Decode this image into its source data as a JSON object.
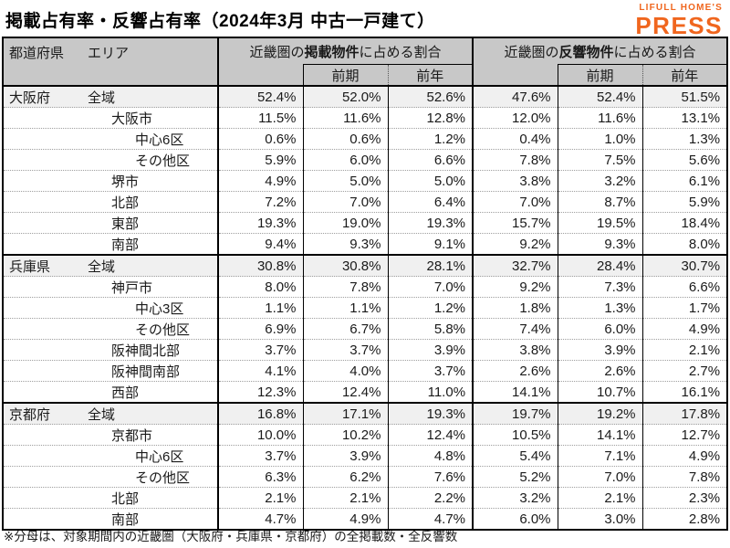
{
  "title": "掲載占有率・反響占有率（2024年3月 中古一戸建て）",
  "logo": {
    "line1": "LIFULL HOME'S",
    "line2": "PRESS",
    "color": "#F0661E"
  },
  "colors": {
    "accent": "#F0661E",
    "header_bg": "#C8C8C8",
    "band_bg": "#F0F0F0",
    "border": "#000000"
  },
  "footnote": "※分母は、対象期間内の近畿圏（大阪府・兵庫県・京都府）の全掲載数・全反響数",
  "chart_data": {
    "type": "table",
    "title": "掲載占有率・反響占有率（2024年3月 中古一戸建て）",
    "corner": {
      "col1": "都道府県",
      "col2": "エリア"
    },
    "groups": [
      {
        "prefix": "近畿圏の",
        "bold": "掲載物件",
        "suffix": "に占める割合"
      },
      {
        "prefix": "近畿圏の",
        "bold": "反響物件",
        "suffix": "に占める割合"
      }
    ],
    "subheaders": {
      "current": "",
      "prev_period": "前期",
      "prev_year": "前年"
    },
    "columns_per_group": [
      "",
      "前期",
      "前年"
    ],
    "sections": [
      {
        "prefecture": "大阪府",
        "rows": [
          {
            "area": "全域",
            "indent": 0,
            "values": [
              "52.4%",
              "52.0%",
              "52.6%",
              "47.6%",
              "52.4%",
              "51.5%"
            ]
          },
          {
            "area": "大阪市",
            "indent": 1,
            "values": [
              "11.5%",
              "11.6%",
              "12.8%",
              "12.0%",
              "11.6%",
              "13.1%"
            ]
          },
          {
            "area": "中心6区",
            "indent": 2,
            "values": [
              "0.6%",
              "0.6%",
              "1.2%",
              "0.4%",
              "1.0%",
              "1.3%"
            ]
          },
          {
            "area": "その他区",
            "indent": 2,
            "values": [
              "5.9%",
              "6.0%",
              "6.6%",
              "7.8%",
              "7.5%",
              "5.6%"
            ]
          },
          {
            "area": "堺市",
            "indent": 1,
            "values": [
              "4.9%",
              "5.0%",
              "5.0%",
              "3.8%",
              "3.2%",
              "6.1%"
            ]
          },
          {
            "area": "北部",
            "indent": 1,
            "values": [
              "7.2%",
              "7.0%",
              "6.4%",
              "7.0%",
              "8.7%",
              "5.9%"
            ]
          },
          {
            "area": "東部",
            "indent": 1,
            "values": [
              "19.3%",
              "19.0%",
              "19.3%",
              "15.7%",
              "19.5%",
              "18.4%"
            ]
          },
          {
            "area": "南部",
            "indent": 1,
            "values": [
              "9.4%",
              "9.3%",
              "9.1%",
              "9.2%",
              "9.3%",
              "8.0%"
            ]
          }
        ]
      },
      {
        "prefecture": "兵庫県",
        "rows": [
          {
            "area": "全域",
            "indent": 0,
            "values": [
              "30.8%",
              "30.8%",
              "28.1%",
              "32.7%",
              "28.4%",
              "30.7%"
            ]
          },
          {
            "area": "神戸市",
            "indent": 1,
            "values": [
              "8.0%",
              "7.8%",
              "7.0%",
              "9.2%",
              "7.3%",
              "6.6%"
            ]
          },
          {
            "area": "中心3区",
            "indent": 2,
            "values": [
              "1.1%",
              "1.1%",
              "1.2%",
              "1.8%",
              "1.3%",
              "1.7%"
            ]
          },
          {
            "area": "その他区",
            "indent": 2,
            "values": [
              "6.9%",
              "6.7%",
              "5.8%",
              "7.4%",
              "6.0%",
              "4.9%"
            ]
          },
          {
            "area": "阪神間北部",
            "indent": 1,
            "values": [
              "3.7%",
              "3.7%",
              "3.9%",
              "3.8%",
              "3.9%",
              "2.1%"
            ]
          },
          {
            "area": "阪神間南部",
            "indent": 1,
            "values": [
              "4.1%",
              "4.0%",
              "3.7%",
              "2.6%",
              "2.6%",
              "2.7%"
            ]
          },
          {
            "area": "西部",
            "indent": 1,
            "values": [
              "12.3%",
              "12.4%",
              "11.0%",
              "14.1%",
              "10.7%",
              "16.1%"
            ]
          }
        ]
      },
      {
        "prefecture": "京都府",
        "rows": [
          {
            "area": "全域",
            "indent": 0,
            "values": [
              "16.8%",
              "17.1%",
              "19.3%",
              "19.7%",
              "19.2%",
              "17.8%"
            ]
          },
          {
            "area": "京都市",
            "indent": 1,
            "values": [
              "10.0%",
              "10.2%",
              "12.4%",
              "10.5%",
              "14.1%",
              "12.7%"
            ]
          },
          {
            "area": "中心6区",
            "indent": 2,
            "values": [
              "3.7%",
              "3.9%",
              "4.8%",
              "5.4%",
              "7.1%",
              "4.9%"
            ]
          },
          {
            "area": "その他区",
            "indent": 2,
            "values": [
              "6.3%",
              "6.2%",
              "7.6%",
              "5.2%",
              "7.0%",
              "7.8%"
            ]
          },
          {
            "area": "北部",
            "indent": 1,
            "values": [
              "2.1%",
              "2.1%",
              "2.2%",
              "3.2%",
              "2.1%",
              "2.3%"
            ]
          },
          {
            "area": "南部",
            "indent": 1,
            "values": [
              "4.7%",
              "4.9%",
              "4.7%",
              "6.0%",
              "3.0%",
              "2.8%"
            ]
          }
        ]
      }
    ]
  }
}
